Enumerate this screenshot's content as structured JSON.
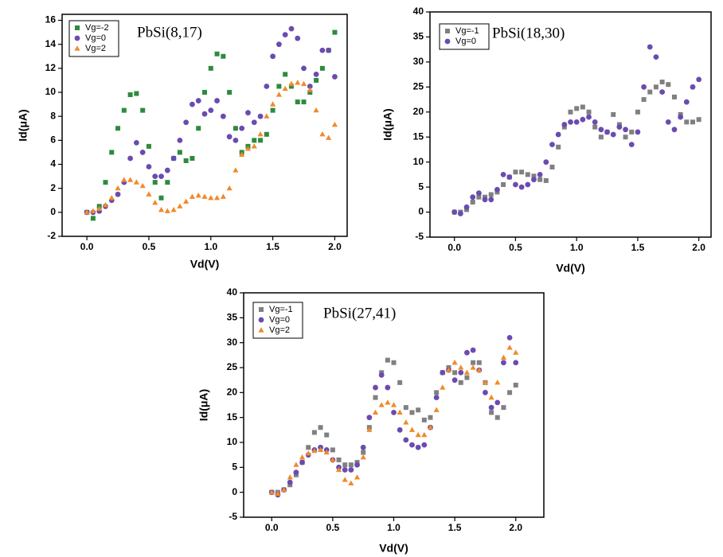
{
  "chart_data": [
    {
      "type": "scatter",
      "annotation": "PbSi(8,17)",
      "x_label": "Vd(V)",
      "y_label": "Id(μA)",
      "legend": "upper left",
      "xlim": [
        -0.2,
        2.1
      ],
      "ylim": [
        -2,
        16.5
      ],
      "xticks": [
        {
          "value": 0,
          "label": "0.0"
        },
        0.5,
        {
          "value": 1,
          "label": "1.0"
        },
        1.5,
        {
          "value": 2,
          "label": "2.0"
        }
      ],
      "yticks": [
        -2,
        0,
        2,
        4,
        6,
        8,
        10,
        12,
        14,
        16
      ],
      "x": [
        0,
        0.05,
        0.1,
        0.15,
        0.2,
        0.25,
        0.3,
        0.35,
        0.4,
        0.45,
        0.5,
        0.55,
        0.6,
        0.65,
        0.7,
        0.75,
        0.8,
        0.85,
        0.9,
        0.95,
        1.0,
        1.05,
        1.1,
        1.15,
        1.2,
        1.25,
        1.3,
        1.35,
        1.4,
        1.45,
        1.5,
        1.55,
        1.6,
        1.65,
        1.7,
        1.75,
        1.8,
        1.85,
        1.9,
        1.95,
        2.0
      ],
      "series": [
        {
          "name": "Vg=-2",
          "color": "#2e8b3e",
          "marker": "square",
          "values": [
            0,
            -0.5,
            0.5,
            2.5,
            5,
            7,
            8.5,
            9.8,
            9.9,
            8.5,
            5.5,
            2.5,
            1.2,
            2.5,
            4.5,
            5,
            4.3,
            4.5,
            7,
            10,
            12,
            13.2,
            13,
            10,
            7,
            5,
            5.5,
            6,
            6,
            6.5,
            8.5,
            10.5,
            11.5,
            10.5,
            9.2,
            9.2,
            10,
            11,
            12,
            13.5,
            15
          ]
        },
        {
          "name": "Vg=0",
          "color": "#6a4bb0",
          "marker": "circle",
          "values": [
            0,
            0,
            0.1,
            0.5,
            1,
            1.5,
            2.5,
            4.5,
            5.8,
            5,
            3.8,
            3,
            3,
            3.5,
            4.5,
            6,
            7.5,
            9,
            9.3,
            8.2,
            8.5,
            9.3,
            8,
            6.3,
            6,
            7,
            8.3,
            7.5,
            8,
            10.5,
            13,
            14,
            14.8,
            15.3,
            14.5,
            12,
            10.5,
            11.5,
            13.5,
            13.5,
            11.3
          ]
        },
        {
          "name": "Vg=2",
          "color": "#f08a2c",
          "marker": "triangle",
          "values": [
            0,
            0.1,
            0.3,
            0.6,
            1.2,
            2,
            2.7,
            2.7,
            2.5,
            2.2,
            1.5,
            0.8,
            0.2,
            0.1,
            0.2,
            0.5,
            0.9,
            1.3,
            1.4,
            1.3,
            1.2,
            1.2,
            1.3,
            2,
            3.5,
            4.8,
            5.3,
            5.5,
            6.5,
            8,
            9,
            9.8,
            10.3,
            10.7,
            10.8,
            10.7,
            10.2,
            8.5,
            6.5,
            6.2,
            7.3
          ]
        }
      ]
    },
    {
      "type": "scatter",
      "annotation": "PbSi(18,30)",
      "x_label": "Vd(V)",
      "y_label": "Id(μA)",
      "legend": "upper left",
      "xlim": [
        -0.2,
        2.1
      ],
      "ylim": [
        -5,
        40
      ],
      "xticks": [
        {
          "value": 0,
          "label": "0.0"
        },
        0.5,
        {
          "value": 1,
          "label": "1.0"
        },
        1.5,
        {
          "value": 2,
          "label": "2.0"
        }
      ],
      "yticks": [
        -5,
        0,
        5,
        10,
        15,
        20,
        25,
        30,
        35,
        40
      ],
      "x": [
        0,
        0.05,
        0.1,
        0.15,
        0.2,
        0.25,
        0.3,
        0.35,
        0.4,
        0.45,
        0.5,
        0.55,
        0.6,
        0.65,
        0.7,
        0.75,
        0.8,
        0.85,
        0.9,
        0.95,
        1.0,
        1.05,
        1.1,
        1.15,
        1.2,
        1.25,
        1.3,
        1.35,
        1.4,
        1.45,
        1.5,
        1.55,
        1.6,
        1.65,
        1.7,
        1.75,
        1.8,
        1.85,
        1.9,
        1.95,
        2.0
      ],
      "series": [
        {
          "name": "Vg=-1",
          "color": "#808080",
          "marker": "square",
          "values": [
            0,
            0,
            0.5,
            2,
            3,
            3,
            3.5,
            4,
            5.5,
            7,
            8,
            8,
            7.5,
            7.2,
            6.5,
            6.3,
            9,
            13,
            17,
            20,
            20.7,
            21,
            20,
            17,
            15,
            16,
            19.5,
            17.5,
            15,
            16,
            20,
            22.5,
            24,
            25,
            26,
            25.5,
            23,
            19.5,
            18,
            18,
            18.5
          ]
        },
        {
          "name": "Vg=0",
          "color": "#6a4bb0",
          "marker": "circle",
          "values": [
            0,
            -0.3,
            1,
            3,
            3.8,
            2.5,
            2.5,
            4.5,
            7.5,
            7,
            5.5,
            5,
            5.5,
            6.5,
            7.5,
            10,
            13.5,
            15.5,
            17.5,
            18,
            18,
            18.5,
            19,
            18,
            16.5,
            16,
            15.5,
            17,
            16.5,
            13.5,
            16,
            25,
            33,
            31,
            24,
            18,
            16.5,
            19,
            22,
            25,
            26.5
          ]
        }
      ]
    },
    {
      "type": "scatter",
      "annotation": "PbSi(27,41)",
      "x_label": "Vd(V)",
      "y_label": "Id(μA)",
      "legend": "upper left",
      "xlim": [
        -0.23,
        2.23
      ],
      "ylim": [
        -5,
        40
      ],
      "xticks": [
        {
          "value": 0,
          "label": "0.0"
        },
        0.5,
        {
          "value": 1,
          "label": "1.0"
        },
        1.5,
        {
          "value": 2,
          "label": "2.0"
        }
      ],
      "yticks": [
        -5,
        0,
        5,
        10,
        15,
        20,
        25,
        30,
        35,
        40
      ],
      "x": [
        0,
        0.05,
        0.1,
        0.15,
        0.2,
        0.25,
        0.3,
        0.35,
        0.4,
        0.45,
        0.5,
        0.55,
        0.6,
        0.65,
        0.7,
        0.75,
        0.8,
        0.85,
        0.9,
        0.95,
        1.0,
        1.05,
        1.1,
        1.15,
        1.2,
        1.25,
        1.3,
        1.35,
        1.4,
        1.45,
        1.5,
        1.55,
        1.6,
        1.65,
        1.7,
        1.75,
        1.8,
        1.85,
        1.9,
        1.95,
        2.0
      ],
      "series": [
        {
          "name": "Vg=-1",
          "color": "#808080",
          "marker": "square",
          "values": [
            0,
            0,
            0.5,
            1.5,
            3.5,
            6,
            9,
            12,
            13,
            11.5,
            8.5,
            6.5,
            5.5,
            5.5,
            6,
            8,
            13,
            19,
            24,
            26.5,
            26,
            22,
            17,
            16,
            16.5,
            14.5,
            15,
            20,
            24,
            25,
            24,
            22,
            23,
            26,
            26,
            22,
            16,
            15,
            17,
            20,
            21.5
          ]
        },
        {
          "name": "Vg=0",
          "color": "#6a4bb0",
          "marker": "circle",
          "values": [
            0,
            -0.5,
            0.5,
            2,
            4,
            6,
            7.5,
            8.5,
            9,
            8.5,
            6.5,
            5,
            4.5,
            4.5,
            5.5,
            9,
            15,
            21,
            23.5,
            21,
            16,
            12.5,
            10.5,
            9.5,
            9,
            9.5,
            13,
            19,
            24,
            24.5,
            22.5,
            24,
            28,
            28.5,
            24.5,
            20,
            17,
            18,
            26,
            31,
            26
          ]
        },
        {
          "name": "Vg=2",
          "color": "#f08a2c",
          "marker": "triangle",
          "values": [
            0,
            -0.3,
            0.5,
            3,
            5.5,
            7,
            7.8,
            8.3,
            8.5,
            8,
            6.5,
            4.5,
            2.5,
            1.8,
            3,
            7,
            12.5,
            16,
            17.5,
            18,
            17.5,
            16,
            14,
            12.5,
            11.5,
            11.5,
            13,
            16.5,
            21,
            24.5,
            26,
            25,
            24,
            25,
            24.5,
            22,
            19,
            22,
            27,
            29,
            28
          ]
        }
      ]
    }
  ]
}
